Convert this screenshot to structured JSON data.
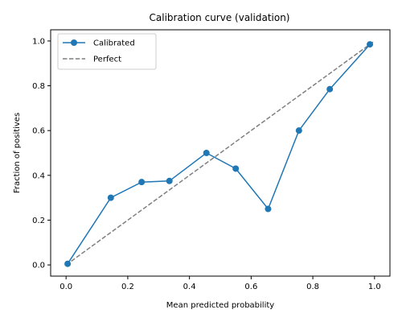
{
  "chart_data": {
    "type": "line",
    "title": "Calibration curve (validation)",
    "xlabel": "Mean predicted probability",
    "ylabel": "Fraction of positives",
    "xlim": [
      -0.05,
      1.05
    ],
    "ylim": [
      -0.05,
      1.05
    ],
    "xticks": [
      0.0,
      0.2,
      0.4,
      0.6,
      0.8,
      1.0
    ],
    "xtick_labels": [
      "0.0",
      "0.2",
      "0.4",
      "0.6",
      "0.8",
      "1.0"
    ],
    "yticks": [
      0.0,
      0.2,
      0.4,
      0.6,
      0.8,
      1.0
    ],
    "ytick_labels": [
      "0.0",
      "0.2",
      "0.4",
      "0.6",
      "0.8",
      "1.0"
    ],
    "grid": false,
    "legend_position": "upper-left",
    "series": [
      {
        "name": "Calibrated",
        "style": "solid-line-with-circle-markers",
        "color": "#1f77b4",
        "x": [
          0.005,
          0.145,
          0.245,
          0.335,
          0.455,
          0.55,
          0.655,
          0.755,
          0.855,
          0.985
        ],
        "y": [
          0.005,
          0.3,
          0.37,
          0.375,
          0.5,
          0.43,
          0.25,
          0.6,
          0.785,
          0.985
        ]
      },
      {
        "name": "Perfect",
        "style": "dashed-line",
        "color": "#7f7f7f",
        "x": [
          0.0,
          1.0
        ],
        "y": [
          0.0,
          1.0
        ]
      }
    ]
  }
}
